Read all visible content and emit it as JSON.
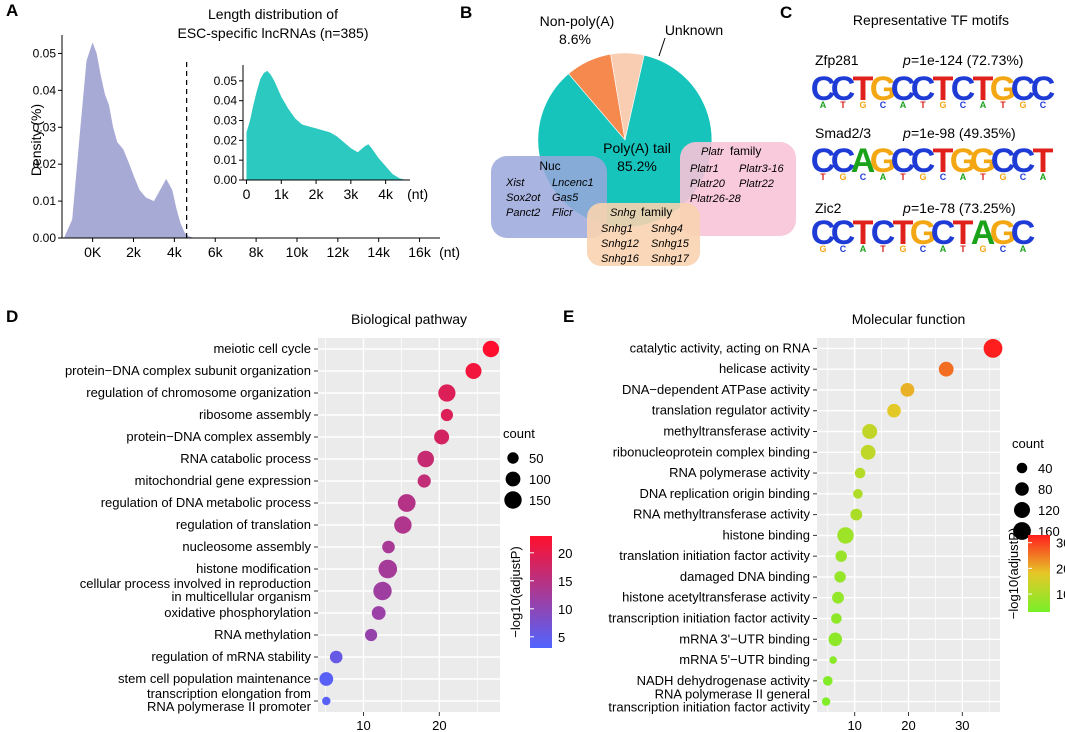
{
  "panels": {
    "A": "A",
    "B": "B",
    "C": "C",
    "D": "D",
    "E": "E"
  },
  "chart_data": [
    {
      "id": "A-main",
      "type": "area",
      "title": "Length distribution of",
      "subtitle": "ESC-specific lncRNAs  (n=385)",
      "ylabel": "Density (%)",
      "xunit": "(nt)",
      "xlim": [
        -1500,
        17000
      ],
      "ylim": [
        0,
        0.055
      ],
      "xticks": [
        0,
        2000,
        4000,
        6000,
        8000,
        10000,
        12000,
        14000,
        16000
      ],
      "xtick_labels": [
        "0K",
        "2k",
        "4k",
        "6k",
        "8k",
        "10k",
        "12k",
        "14k",
        "16k"
      ],
      "yticks": [
        0,
        0.01,
        0.02,
        0.03,
        0.04,
        0.05
      ],
      "ytick_labels": [
        "0.00",
        "0.01",
        "0.02",
        "0.03",
        "0.04",
        "0.05"
      ],
      "cutoff_x": 4600,
      "x": [
        -1400,
        -1000,
        -600,
        -300,
        0,
        200,
        400,
        600,
        800,
        1000,
        1200,
        1500,
        1800,
        2000,
        2300,
        2600,
        3000,
        3300,
        3600,
        3900,
        4100,
        4300,
        4500,
        4700,
        5000
      ],
      "y": [
        0,
        0.005,
        0.03,
        0.048,
        0.053,
        0.05,
        0.044,
        0.039,
        0.036,
        0.03,
        0.026,
        0.024,
        0.02,
        0.017,
        0.013,
        0.011,
        0.01,
        0.013,
        0.016,
        0.013,
        0.008,
        0.004,
        0.0015,
        0.0005,
        0
      ],
      "color": "#a8aad6"
    },
    {
      "id": "A-inset",
      "type": "area",
      "xunit": "(nt)",
      "xlim": [
        -100,
        4700
      ],
      "ylim": [
        0,
        0.058
      ],
      "xticks": [
        0,
        1000,
        2000,
        3000,
        4000
      ],
      "xtick_labels": [
        "0",
        "1k",
        "2k",
        "3k",
        "4k"
      ],
      "yticks": [
        0,
        0.01,
        0.02,
        0.03,
        0.04,
        0.05
      ],
      "ytick_labels": [
        "0.00",
        "0.01",
        "0.02",
        "0.03",
        "0.04",
        "0.05"
      ],
      "x": [
        0,
        100,
        200,
        300,
        400,
        500,
        600,
        700,
        800,
        900,
        1000,
        1200,
        1400,
        1600,
        1800,
        2000,
        2200,
        2400,
        2600,
        2800,
        3000,
        3200,
        3400,
        3500,
        3600,
        3800,
        4000,
        4200,
        4400,
        4600
      ],
      "y": [
        0.024,
        0.03,
        0.038,
        0.045,
        0.051,
        0.054,
        0.055,
        0.053,
        0.05,
        0.046,
        0.042,
        0.036,
        0.031,
        0.028,
        0.027,
        0.026,
        0.025,
        0.024,
        0.022,
        0.019,
        0.016,
        0.014,
        0.017,
        0.018,
        0.016,
        0.011,
        0.007,
        0.003,
        0.0008,
        0
      ],
      "color": "#2cc9c0"
    },
    {
      "id": "B",
      "type": "pie",
      "labels": [
        "Poly(A) tail",
        "Non-poly(A)",
        "Unknown"
      ],
      "values": [
        85.2,
        8.6,
        6.2
      ],
      "value_labels": [
        "85.2%",
        "8.6%",
        ""
      ],
      "colors": [
        "#16c4bb",
        "#f5894e",
        "#f9cdb2"
      ],
      "annotations": {
        "nuc": {
          "title": "Nuc",
          "genes": [
            "Xist",
            "Lncenc1",
            "Sox2ot",
            "Gas5",
            "Panct2",
            "Flicr"
          ],
          "color": "#9aa7dc",
          "title_color": "#cc0000"
        },
        "platr": {
          "title_italic": "Platr",
          "title_rest": " family",
          "genes": [
            "Platr1",
            "Platr3-16",
            "Platr20",
            "Platr22",
            "Platr26-28"
          ],
          "color": "#f8c3d8",
          "title_color": "#1a1ab0"
        },
        "snhg": {
          "title_italic": "Snhg",
          "title_rest": " family",
          "genes": [
            "Snhg1",
            "Snhg4",
            "Snhg12",
            "Snhg15",
            "Snhg16",
            "Snhg17"
          ],
          "color": "#f8d3b0",
          "title_color": "#1a1ab0"
        }
      }
    },
    {
      "id": "C",
      "type": "table",
      "title": "Representative TF motifs",
      "motifs": [
        {
          "name": "Zfp281",
          "p_italic": "p",
          "pstat": "=1e-124 (72.73%)",
          "seq": "CCTGCCTCTGCC"
        },
        {
          "name": "Smad2/3",
          "p_italic": "p",
          "pstat": "=1e-98 (49.35%)",
          "seq": "CCAGCCTGGCCT"
        },
        {
          "name": "Zic2",
          "p_italic": "p",
          "pstat": "=1e-78 (73.25%)",
          "seq": "CCTCTGCTAGC"
        }
      ]
    },
    {
      "id": "D",
      "type": "scatter",
      "title": "Biological pathway",
      "xticks": [
        10,
        20
      ],
      "xlim": [
        4,
        28
      ],
      "size_legend_title": "count",
      "size_legend": [
        50,
        100,
        150
      ],
      "color_legend_title": "−log10(adjustP)",
      "color_range": [
        3,
        23
      ],
      "color_ticks": [
        5,
        10,
        15,
        20
      ],
      "points": [
        {
          "term": "meiotic cell cycle",
          "x": 26.8,
          "count": 130,
          "p": 23
        },
        {
          "term": "protein−DNA complex subunit organization",
          "x": 24.5,
          "count": 120,
          "p": 21.5
        },
        {
          "term": "regulation of chromosome organization",
          "x": 21,
          "count": 145,
          "p": 19
        },
        {
          "term": "ribosome assembly",
          "x": 21,
          "count": 60,
          "p": 19
        },
        {
          "term": "protein−DNA complex assembly",
          "x": 20.3,
          "count": 105,
          "p": 18
        },
        {
          "term": "RNA catabolic process",
          "x": 18.2,
          "count": 135,
          "p": 16.5
        },
        {
          "term": "mitochondrial gene expression",
          "x": 18,
          "count": 75,
          "p": 16
        },
        {
          "term": "regulation of DNA metabolic process",
          "x": 15.7,
          "count": 160,
          "p": 14.5
        },
        {
          "term": "regulation of translation",
          "x": 15.2,
          "count": 150,
          "p": 14
        },
        {
          "term": "nucleosome assembly",
          "x": 13.3,
          "count": 65,
          "p": 13
        },
        {
          "term": "histone modification",
          "x": 13.2,
          "count": 175,
          "p": 12.7
        },
        {
          "term": "cellular process involved in reproduction\nin multicellular organism",
          "x": 12.5,
          "count": 170,
          "p": 12
        },
        {
          "term": "oxidative phosphorylation",
          "x": 12,
          "count": 85,
          "p": 11.5
        },
        {
          "term": "RNA methylation",
          "x": 11,
          "count": 60,
          "p": 11
        },
        {
          "term": "regulation of mRNA stability",
          "x": 6.4,
          "count": 65,
          "p": 5.5
        },
        {
          "term": "stem cell population maintenance",
          "x": 5.1,
          "count": 85,
          "p": 4
        },
        {
          "term": "transcription elongation from\nRNA polymerase II promoter",
          "x": 5.1,
          "count": 20,
          "p": 4
        }
      ]
    },
    {
      "id": "E",
      "type": "scatter",
      "title": "Molecular function",
      "xticks": [
        10,
        20,
        30
      ],
      "xlim": [
        3,
        37
      ],
      "size_legend_title": "count",
      "size_legend": [
        40,
        80,
        120,
        160
      ],
      "color_legend_title": "−log10(adjustP)",
      "color_range": [
        3,
        33
      ],
      "color_ticks": [
        10,
        20,
        30
      ],
      "points": [
        {
          "term": "catalytic activity, acting on RNA",
          "x": 35.7,
          "count": 180,
          "p": 33
        },
        {
          "term": "helicase activity",
          "x": 27,
          "count": 100,
          "p": 26
        },
        {
          "term": "DNA−dependent ATPase activity",
          "x": 19.8,
          "count": 85,
          "p": 20
        },
        {
          "term": "translation regulator activity",
          "x": 17.3,
          "count": 80,
          "p": 17.5
        },
        {
          "term": "methyltransferase activity",
          "x": 12.8,
          "count": 105,
          "p": 13
        },
        {
          "term": "ribonucleoprotein complex binding",
          "x": 12.5,
          "count": 100,
          "p": 12.5
        },
        {
          "term": "RNA polymerase activity",
          "x": 11,
          "count": 40,
          "p": 11
        },
        {
          "term": "DNA replication origin binding",
          "x": 10.6,
          "count": 30,
          "p": 10.5
        },
        {
          "term": "RNA methyltransferase activity",
          "x": 10.3,
          "count": 55,
          "p": 10
        },
        {
          "term": "histone binding",
          "x": 8.3,
          "count": 130,
          "p": 8
        },
        {
          "term": "translation initiation factor activity",
          "x": 7.5,
          "count": 50,
          "p": 7.5
        },
        {
          "term": "damaged DNA binding",
          "x": 7.3,
          "count": 50,
          "p": 7
        },
        {
          "term": "histone acetyltransferase activity",
          "x": 6.9,
          "count": 55,
          "p": 6.5
        },
        {
          "term": "transcription initiation factor activity",
          "x": 6.6,
          "count": 40,
          "p": 6
        },
        {
          "term": "mRNA 3'−UTR binding",
          "x": 6.4,
          "count": 80,
          "p": 5.8
        },
        {
          "term": "mRNA 5'−UTR binding",
          "x": 6,
          "count": 15,
          "p": 5.5
        },
        {
          "term": "NADH dehydrogenase activity",
          "x": 5,
          "count": 30,
          "p": 4.5
        },
        {
          "term": "RNA polymerase II general\ntranscription initiation factor activity",
          "x": 4.7,
          "count": 20,
          "p": 4
        }
      ]
    }
  ]
}
